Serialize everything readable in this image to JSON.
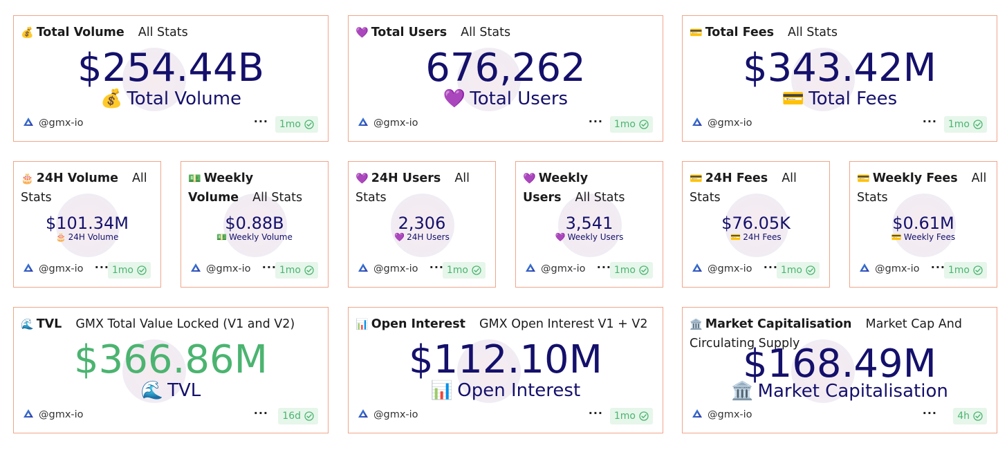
{
  "handle": "@gmx-io",
  "accent_value": "#14106b",
  "accent_green": "#4bb470",
  "card_border": "#f0a58a",
  "cards": [
    {
      "id": "total_volume",
      "emoji": "💰",
      "title": "Total Volume",
      "subtitle": "All Stats",
      "value": "$254.44B",
      "caption_emoji": "💰",
      "caption": "Total Volume",
      "badge": "1mo"
    },
    {
      "id": "total_users",
      "emoji": "💜",
      "title": "Total Users",
      "subtitle": "All Stats",
      "value": "676,262",
      "caption_emoji": "💜",
      "caption": "Total Users",
      "badge": "1mo"
    },
    {
      "id": "total_fees",
      "emoji": "💳",
      "title": "Total Fees",
      "subtitle": "All Stats",
      "value": "$343.42M",
      "caption_emoji": "💳",
      "caption": "Total Fees",
      "badge": "1mo"
    },
    {
      "id": "volume_24h",
      "emoji": "🎂",
      "title": "24H Volume",
      "subtitle": "All Stats",
      "value": "$101.34M",
      "caption_emoji": "🎂",
      "caption": "24H Volume",
      "badge": "1mo"
    },
    {
      "id": "weekly_volume",
      "emoji": "💵",
      "title": "Weekly Volume",
      "subtitle": "All Stats",
      "value": "$0.88B",
      "caption_emoji": "💵",
      "caption": "Weekly Volume",
      "badge": "1mo"
    },
    {
      "id": "users_24h",
      "emoji": "💜",
      "title": "24H Users",
      "subtitle": "All Stats",
      "value": "2,306",
      "caption_emoji": "💜",
      "caption": "24H Users",
      "badge": "1mo"
    },
    {
      "id": "weekly_users",
      "emoji": "💜",
      "title": "Weekly Users",
      "subtitle": "All Stats",
      "value": "3,541",
      "caption_emoji": "💜",
      "caption": "Weekly Users",
      "badge": "1mo"
    },
    {
      "id": "fees_24h",
      "emoji": "💳",
      "title": "24H Fees",
      "subtitle": "All Stats",
      "value": "$76.05K",
      "caption_emoji": "💳",
      "caption": "24H Fees",
      "badge": "1mo"
    },
    {
      "id": "weekly_fees",
      "emoji": "💳",
      "title": "Weekly Fees",
      "subtitle": "All Stats",
      "value": "$0.61M",
      "caption_emoji": "💳",
      "caption": "Weekly Fees",
      "badge": "1mo"
    },
    {
      "id": "tvl",
      "emoji": "🌊",
      "title": "TVL",
      "subtitle": "GMX Total Value Locked (V1 and V2)",
      "value": "$366.86M",
      "caption_emoji": "🌊",
      "caption": "TVL",
      "badge": "16d"
    },
    {
      "id": "open_interest",
      "emoji": "📊",
      "title": "Open Interest",
      "subtitle": "GMX Open Interest V1 + V2",
      "value": "$112.10M",
      "caption_emoji": "📊",
      "caption": "Open Interest",
      "badge": "1mo"
    },
    {
      "id": "market_cap",
      "emoji": "🏛️",
      "title": "Market Capitalisation",
      "subtitle": "Market Cap And Circulating Supply",
      "value": "$168.49M",
      "caption_emoji": "🏛️",
      "caption": "Market Capitalisation",
      "badge": "4h"
    }
  ]
}
